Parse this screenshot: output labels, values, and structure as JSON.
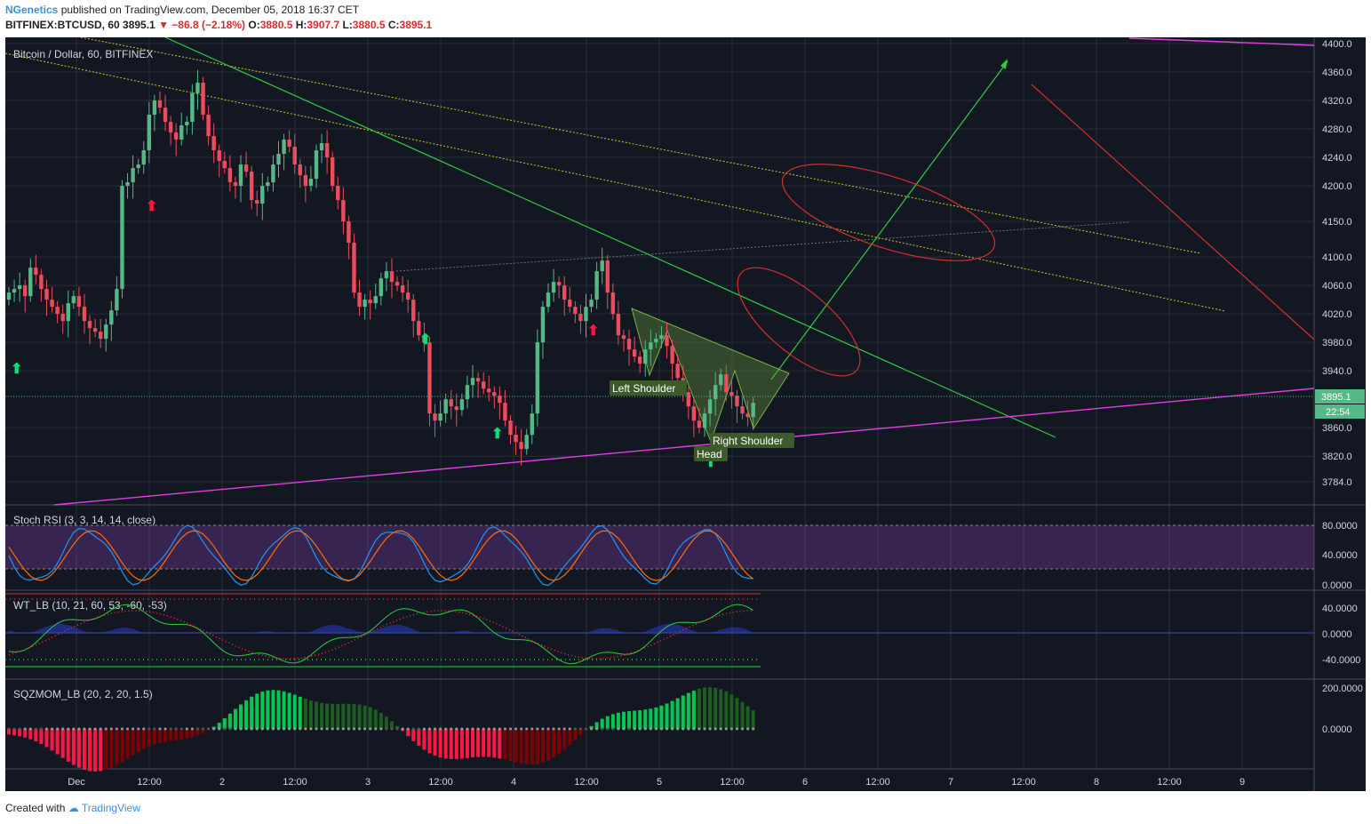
{
  "header": {
    "author": "NGenetics",
    "published_text": "published on TradingView.com, December 05, 2018 16:37 CET",
    "symbol_line": "BITFINEX:BTCUSD, 60",
    "last": "3895.1",
    "change": "▼ −86.8 (−2.18%)",
    "open_label": "O:",
    "open": "3880.5",
    "high_label": "H:",
    "high": "3907.7",
    "low_label": "L:",
    "low": "3880.5",
    "close_label": "C:",
    "close": "3895.1"
  },
  "footer": {
    "created_with": "Created with",
    "brand": "TradingView"
  },
  "colors": {
    "background": "#131722",
    "up": "#53b987",
    "down": "#eb4d5c",
    "grid": "#2a2e39",
    "axis_text": "#d1d4dc"
  },
  "panes": {
    "main_title": "Bitcoin / Dollar, 60, BITFINEX",
    "stoch_title": "Stoch RSI (3, 3, 14, 14, close)",
    "wt_title": "WT_LB (10, 21, 60, 53, -60, -53)",
    "sqz_title": "SQZMOM_LB (20, 2, 20, 1.5)"
  },
  "price_axis": [
    "4400.0",
    "4360.0",
    "4320.0",
    "4280.0",
    "4240.0",
    "4200.0",
    "4150.0",
    "4100.0",
    "4060.0",
    "4020.0",
    "3980.0",
    "3940.0",
    "3860.0",
    "3820.0",
    "3784.0"
  ],
  "last_price_label": "3895.1",
  "countdown_label": "22:54",
  "stoch_axis": [
    "80.0000",
    "40.0000",
    "0.0000"
  ],
  "wt_axis": [
    "40.0000",
    "0.0000",
    "-40.0000"
  ],
  "sqz_axis": [
    "200.0000",
    "0.0000"
  ],
  "time_axis": [
    "Dec",
    "12:00",
    "2",
    "12:00",
    "3",
    "12:00",
    "4",
    "12:00",
    "5",
    "12:00",
    "6",
    "12:00",
    "7",
    "12:00",
    "8",
    "12:00",
    "9"
  ],
  "annotations": {
    "left_shoulder": "Left Shoulder",
    "head": "Head",
    "right_shoulder": "Right Shoulder"
  },
  "chart_data": {
    "type": "candlestick",
    "title": "Bitcoin / Dollar, 60, BITFINEX",
    "ylim": [
      3760,
      4410
    ],
    "close": [
      4050,
      4055,
      4060,
      4045,
      4085,
      4075,
      4055,
      4040,
      4030,
      4020,
      4010,
      4035,
      4045,
      4030,
      4010,
      4000,
      3995,
      3985,
      4005,
      4025,
      4055,
      4200,
      4205,
      4225,
      4230,
      4250,
      4300,
      4320,
      4310,
      4290,
      4275,
      4265,
      4285,
      4290,
      4330,
      4345,
      4300,
      4270,
      4250,
      4235,
      4225,
      4205,
      4200,
      4230,
      4220,
      4180,
      4175,
      4200,
      4205,
      4230,
      4245,
      4265,
      4255,
      4230,
      4215,
      4200,
      4210,
      4250,
      4260,
      4240,
      4200,
      4180,
      4150,
      4120,
      4050,
      4030,
      4040,
      4035,
      4045,
      4070,
      4080,
      4065,
      4060,
      4050,
      4040,
      4010,
      3990,
      3980,
      3880,
      3870,
      3880,
      3900,
      3890,
      3885,
      3900,
      3920,
      3930,
      3925,
      3915,
      3910,
      3905,
      3895,
      3870,
      3850,
      3840,
      3830,
      3850,
      3880,
      3980,
      4030,
      4050,
      4065,
      4060,
      4040,
      4030,
      4020,
      4010,
      4030,
      4040,
      4080,
      4095,
      4050,
      4020,
      3990,
      3985,
      3970,
      3960,
      3950,
      3970,
      3980,
      3985,
      3990,
      3975,
      3950,
      3930,
      3910,
      3890,
      3870,
      3860,
      3880,
      3900,
      3920,
      3935,
      3910,
      3905,
      3890,
      3880,
      3875,
      3895
    ],
    "panes": [
      "price",
      "Stoch RSI",
      "WT_LB",
      "SQZMOM_LB"
    ]
  }
}
